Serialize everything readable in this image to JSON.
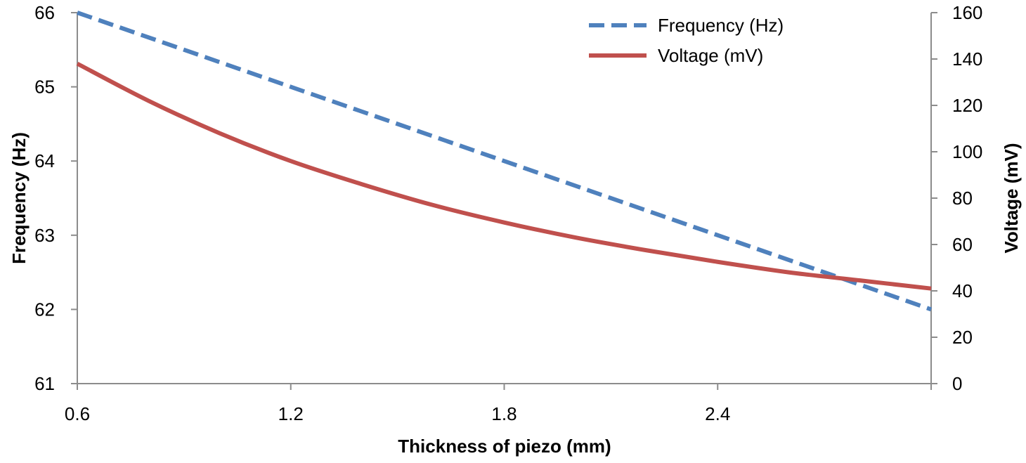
{
  "chart_data": {
    "type": "line",
    "title": "",
    "xlabel": "Thickness of piezo (mm)",
    "ylabel_left": "Frequency (Hz)",
    "ylabel_right": "Voltage (mV)",
    "xlim": [
      0.6,
      3.0
    ],
    "ylim_left": [
      61,
      66
    ],
    "ylim_right": [
      0,
      160
    ],
    "x_ticks": [
      0.6,
      1.2,
      1.8,
      2.4
    ],
    "x_tick_labels": [
      "0.6",
      "1.2",
      "1.8",
      "2.4"
    ],
    "y_left_ticks": [
      61,
      62,
      63,
      64,
      65,
      66
    ],
    "y_left_tick_labels": [
      "61",
      "62",
      "63",
      "64",
      "65",
      "66"
    ],
    "y_right_ticks": [
      0,
      20,
      40,
      60,
      80,
      100,
      120,
      140,
      160
    ],
    "y_right_tick_labels": [
      "0",
      "20",
      "40",
      "60",
      "80",
      "100",
      "120",
      "140",
      "160"
    ],
    "grid": false,
    "legend_position": "top-right",
    "series": [
      {
        "name": "Frequency (Hz)",
        "axis": "left",
        "style": "dashed",
        "color": "#4f81bd",
        "x": [
          0.6,
          3.0
        ],
        "values": [
          66.0,
          62.0
        ]
      },
      {
        "name": "Voltage (mV)",
        "axis": "right",
        "style": "solid",
        "color": "#c0504d",
        "x": [
          0.6,
          0.8,
          1.0,
          1.2,
          1.4,
          1.6,
          1.8,
          2.0,
          2.2,
          2.4,
          2.6,
          2.8,
          3.0
        ],
        "values": [
          138,
          122,
          108,
          96,
          86,
          77,
          69.5,
          63,
          57.5,
          52.5,
          48,
          44.5,
          41
        ]
      }
    ]
  }
}
